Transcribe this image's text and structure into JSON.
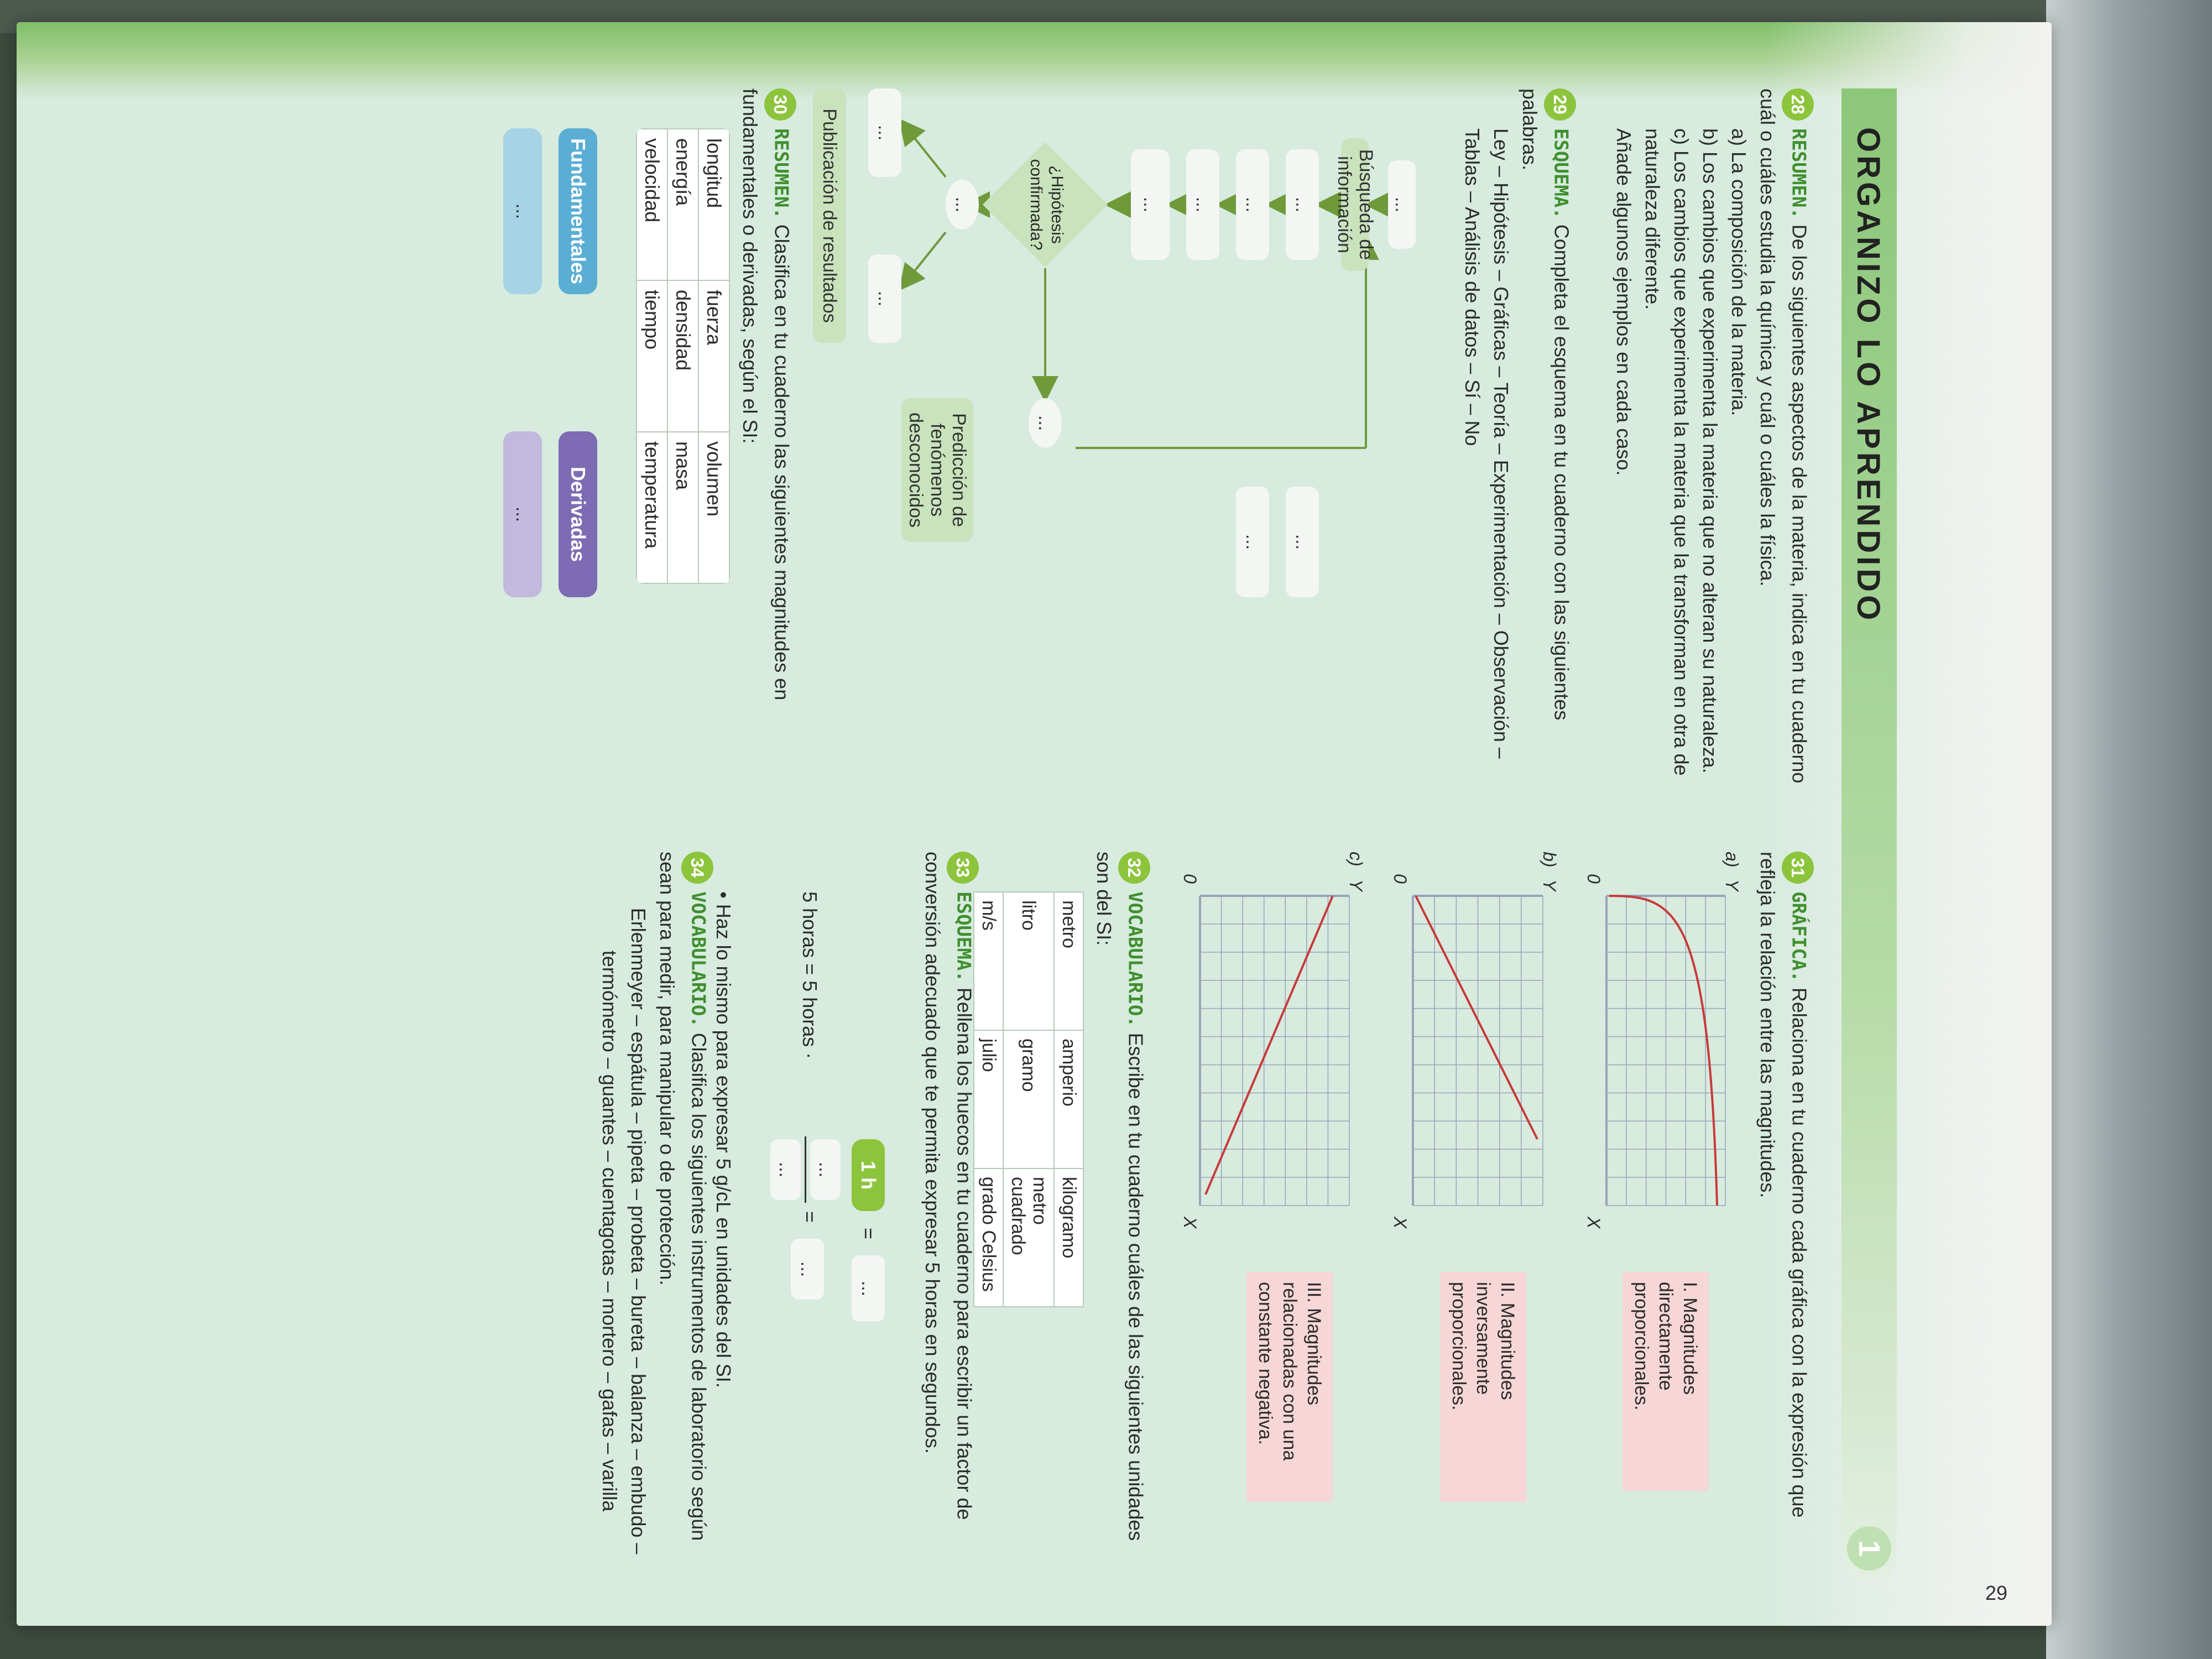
{
  "header": {
    "title": "ORGANIZO LO APRENDIDO",
    "unit_number": "1",
    "page_number": "29"
  },
  "ex28": {
    "number": "28",
    "keyword": "RESUMEN.",
    "intro": "De los siguientes aspectos de la materia, indica en tu cuaderno cuál o cuáles estudia la química y cuál o cuáles la física.",
    "items": [
      "a) La composición de la materia.",
      "b) Los cambios que experimenta la materia que no alteran su naturaleza.",
      "c) Los cambios que experimenta la materia que la transforman en otra de naturaleza diferente."
    ],
    "closing": "Añade algunos ejemplos en cada caso."
  },
  "ex29": {
    "number": "29",
    "keyword": "ESQUEMA.",
    "intro": "Completa el esquema en tu cuaderno con las siguientes palabras.",
    "words": "Ley – Hipótesis – Gráficas – Teoría – Experimentación – Observación – Tablas – Análisis de datos – Sí – No",
    "flowchart": {
      "blank": "...",
      "search": "Búsqueda de información",
      "hypothesis_q": "¿Hipótesis confirmada?",
      "prediction": "Predicción de fenómenos desconocidos",
      "publication": "Publicación de resultados"
    }
  },
  "ex30": {
    "number": "30",
    "keyword": "RESUMEN.",
    "intro": "Clasifica en tu cuaderno las siguientes magnitudes en fundamentales o derivadas, según el SI:",
    "table": [
      [
        "longitud",
        "fuerza",
        "volumen"
      ],
      [
        "energía",
        "densidad",
        "masa"
      ],
      [
        "velocidad",
        "tiempo",
        "temperatura"
      ]
    ],
    "fundamentales": "Fundamentales",
    "derivadas": "Derivadas",
    "blank": "..."
  },
  "ex31": {
    "number": "31",
    "keyword": "GRÁFICA.",
    "intro": "Relaciona en tu cuaderno cada gráfica con la expresión que refleja la relación entre las magnitudes.",
    "graphs": [
      {
        "label": "a)",
        "axis_y": "Y",
        "axis_x": "X",
        "origin": "0"
      },
      {
        "label": "b)",
        "axis_y": "Y",
        "axis_x": "X",
        "origin": "0"
      },
      {
        "label": "c)",
        "axis_y": "Y",
        "axis_x": "X",
        "origin": "0"
      }
    ],
    "options": [
      "I. Magnitudes directamente proporcionales.",
      "II. Magnitudes inversamente proporcionales.",
      "III. Magnitudes relacionadas con una constante negativa."
    ],
    "colors": {
      "curve": "#c83a3a",
      "grid": "#9aa3b8",
      "label_bg": "#f6d6d6"
    }
  },
  "ex32": {
    "number": "32",
    "keyword": "VOCABULARIO.",
    "intro": "Escribe en tu cuaderno cuáles de las siguientes unidades son del SI:",
    "table": [
      [
        "metro",
        "amperio",
        "kilogramo"
      ],
      [
        "litro",
        "gramo",
        "metro cuadrado"
      ],
      [
        "m/s",
        "julio",
        "grado Celsius"
      ]
    ]
  },
  "ex33": {
    "number": "33",
    "keyword": "ESQUEMA.",
    "intro": "Rellena los huecos en tu cuaderno para escribir un factor de conversión adecuado que te permita expresar 5 horas en segundos.",
    "one_hour": "1 h",
    "equals": "=",
    "blank": "...",
    "equation_left": "5 horas = 5 horas ·",
    "bullet": "Haz lo mismo para expresar 5 g/cL en unidades del SI."
  },
  "ex34": {
    "number": "34",
    "keyword": "VOCABULARIO.",
    "intro": "Clasifica los siguientes instrumentos de laboratorio según sean para medir, para manipular o de protección.",
    "list": "Erlenmeyer – espátula – pipeta – probeta – bureta – balanza – embudo – termómetro – guantes – cuentagotas – mortero – gafas – varilla"
  }
}
